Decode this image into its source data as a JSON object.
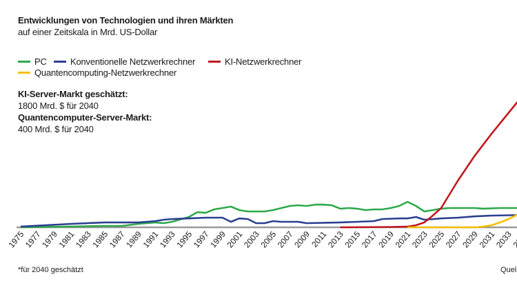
{
  "chart_data": {
    "type": "line",
    "title": "Entwicklungen von Technologien und ihren Märkten",
    "subtitle": "auf einer Zeitskala in Mrd. US-Dollar",
    "xlabel": "",
    "ylabel": "",
    "grid": false,
    "legend_placement": "top-left",
    "xlim": [
      1975,
      2040
    ],
    "ylim": [
      0,
      1800
    ],
    "x_ticks": [
      "1975",
      "1977",
      "1979",
      "1981",
      "1983",
      "1985",
      "1987",
      "1989",
      "1991",
      "1993",
      "1995",
      "1997",
      "1999",
      "2001",
      "2003",
      "2005",
      "2007",
      "2009",
      "2011",
      "2013",
      "2015",
      "2017",
      "2019",
      "2021",
      "2023",
      "2025",
      "2027",
      "2029",
      "2031",
      "2033",
      "2035"
    ],
    "series": [
      {
        "name": "PC",
        "color": "#2ea84a",
        "x": [
          1975,
          1977,
          1981,
          1985,
          1987,
          1989,
          1991,
          1992,
          1993,
          1995,
          1996,
          1997,
          1998,
          1999,
          2000,
          2001,
          2002,
          2004,
          2005,
          2006,
          2007,
          2008,
          2009,
          2010,
          2011,
          2012,
          2013,
          2014,
          2015,
          2016,
          2017,
          2018,
          2019,
          2020,
          2021,
          2022,
          2023,
          2024,
          2025,
          2026,
          2028,
          2029,
          2030,
          2032,
          2034,
          2035
        ],
        "y": [
          0,
          3,
          7,
          13,
          13,
          33,
          47,
          40,
          53,
          100,
          146,
          140,
          173,
          186,
          200,
          166,
          153,
          153,
          166,
          186,
          206,
          213,
          206,
          219,
          219,
          213,
          180,
          186,
          180,
          166,
          173,
          173,
          186,
          206,
          246,
          206,
          153,
          166,
          180,
          186,
          186,
          186,
          180,
          186,
          186,
          186
        ]
      },
      {
        "name": "Konventionelle Netzwerkrechner",
        "color": "#2b3f8f",
        "x": [
          1975,
          1981,
          1985,
          1989,
          1991,
          1992,
          1993,
          1995,
          1997,
          1999,
          2000,
          2001,
          2002,
          2003,
          2004,
          2005,
          2006,
          2008,
          2009,
          2013,
          2015,
          2017,
          2018,
          2020,
          2021,
          2022,
          2023,
          2025,
          2027,
          2029,
          2031,
          2035
        ],
        "y": [
          7,
          33,
          47,
          47,
          60,
          73,
          80,
          86,
          93,
          93,
          53,
          86,
          80,
          40,
          40,
          60,
          53,
          53,
          40,
          47,
          53,
          60,
          80,
          86,
          86,
          100,
          73,
          86,
          93,
          106,
          113,
          120
        ]
      },
      {
        "name": "KI-Netzwerkrechner",
        "color": "#c0191e",
        "x": [
          2013,
          2019,
          2021,
          2022,
          2023,
          2024,
          2025,
          2027,
          2029,
          2031,
          2033,
          2040
        ],
        "y": [
          0,
          3,
          7,
          20,
          47,
          113,
          186,
          452,
          692,
          904,
          1104,
          1800
        ]
      },
      {
        "name": "Quantencomputing-Netzwerkrechner",
        "color": "#f5c000",
        "x": [
          2021,
          2029,
          2030,
          2031,
          2032,
          2033,
          2034,
          2040
        ],
        "y": [
          0,
          0,
          7,
          20,
          47,
          80,
          120,
          400
        ]
      }
    ],
    "annotations": {
      "ki_label": "KI-Server-Markt geschätzt:",
      "ki_value": "1800 Mrd. $ für 2040",
      "qc_label": "Quantencomputer-Server-Markt:",
      "qc_value": "400 Mrd. $ für 2040",
      "footnote": "*für 2040 geschätzt",
      "source": "Quel"
    }
  }
}
